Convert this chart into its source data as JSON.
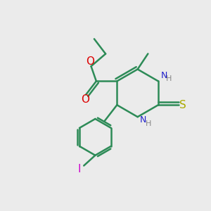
{
  "bg_color": "#ebebeb",
  "bond_color": "#2d8b57",
  "N_color": "#2222cc",
  "O_color": "#dd0000",
  "S_color": "#aaaa00",
  "I_color": "#cc00cc",
  "H_color": "#888888",
  "line_width": 1.8,
  "figsize": [
    3.0,
    3.0
  ],
  "dpi": 100,
  "xlim": [
    0,
    10
  ],
  "ylim": [
    0,
    10
  ]
}
